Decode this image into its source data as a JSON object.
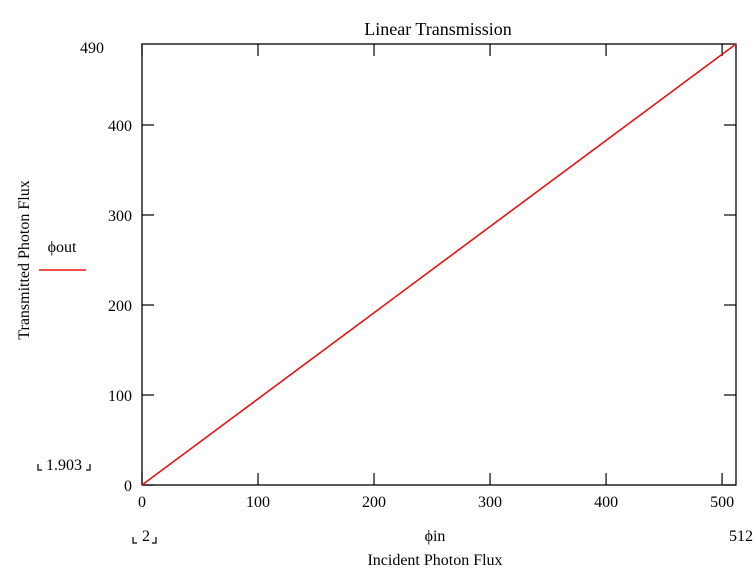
{
  "colors": {
    "series": "#e8120e",
    "axis": "#000000",
    "background": "#ffffff"
  },
  "chart_data": {
    "type": "line",
    "title": "Linear Transmission",
    "xlabel": "Incident Photon Flux",
    "ylabel": "Transmitted Photon Flux",
    "x_variable": "ϕin",
    "xlim": [
      0,
      512
    ],
    "ylim": [
      0,
      490
    ],
    "x_ticks": [
      0,
      100,
      200,
      300,
      400,
      500
    ],
    "y_ticks": [
      0,
      100,
      200,
      300,
      400
    ],
    "x_range_labels": {
      "min": "2",
      "max": "512"
    },
    "y_range_labels": {
      "min": "1.903",
      "max": "490"
    },
    "legend": {
      "position": "left",
      "entries": [
        "ϕout"
      ]
    },
    "grid": false,
    "series": [
      {
        "name": "ϕout",
        "x": [
          0,
          512
        ],
        "y": [
          0,
          490
        ]
      }
    ]
  }
}
